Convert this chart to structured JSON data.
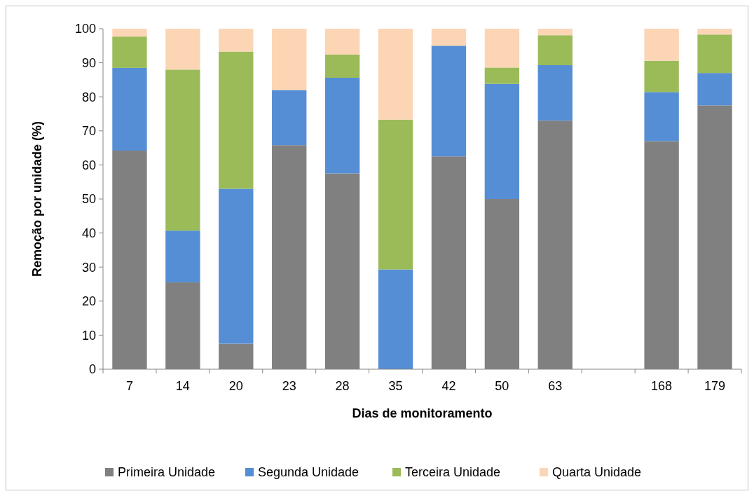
{
  "chart_data": {
    "type": "bar",
    "stacked": true,
    "xlabel": "Dias de monitoramento",
    "ylabel": "Remoção por unidade (%)",
    "categories": [
      "7",
      "14",
      "20",
      "23",
      "28",
      "35",
      "42",
      "50",
      "63",
      null,
      "168",
      "179"
    ],
    "series": [
      {
        "name": "Primeira Unidade",
        "color": "#808080",
        "values": [
          64.2,
          25.5,
          7.5,
          65.8,
          57.5,
          0,
          62.5,
          50,
          73,
          null,
          67,
          77.5
        ]
      },
      {
        "name": "Segunda Unidade",
        "color": "#558ed5",
        "values": [
          24.3,
          15.2,
          45.5,
          16.2,
          28.1,
          29.3,
          32.5,
          33.8,
          16.3,
          null,
          14.4,
          9.5
        ]
      },
      {
        "name": "Terceira Unidade",
        "color": "#9bbb59",
        "values": [
          9.2,
          47.3,
          40.3,
          0,
          6.8,
          44,
          0,
          4.8,
          8.8,
          null,
          9.2,
          11.3
        ]
      },
      {
        "name": "Quarta Unidade",
        "color": "#fcd5b5",
        "values": [
          2.3,
          12,
          6.7,
          18,
          7.6,
          26.7,
          5,
          11.4,
          1.9,
          null,
          9.4,
          1.7
        ]
      }
    ],
    "ylim": [
      0,
      100
    ],
    "yticks": [
      0,
      10,
      20,
      30,
      40,
      50,
      60,
      70,
      80,
      90,
      100
    ],
    "grid": false,
    "legend": "bottom"
  }
}
